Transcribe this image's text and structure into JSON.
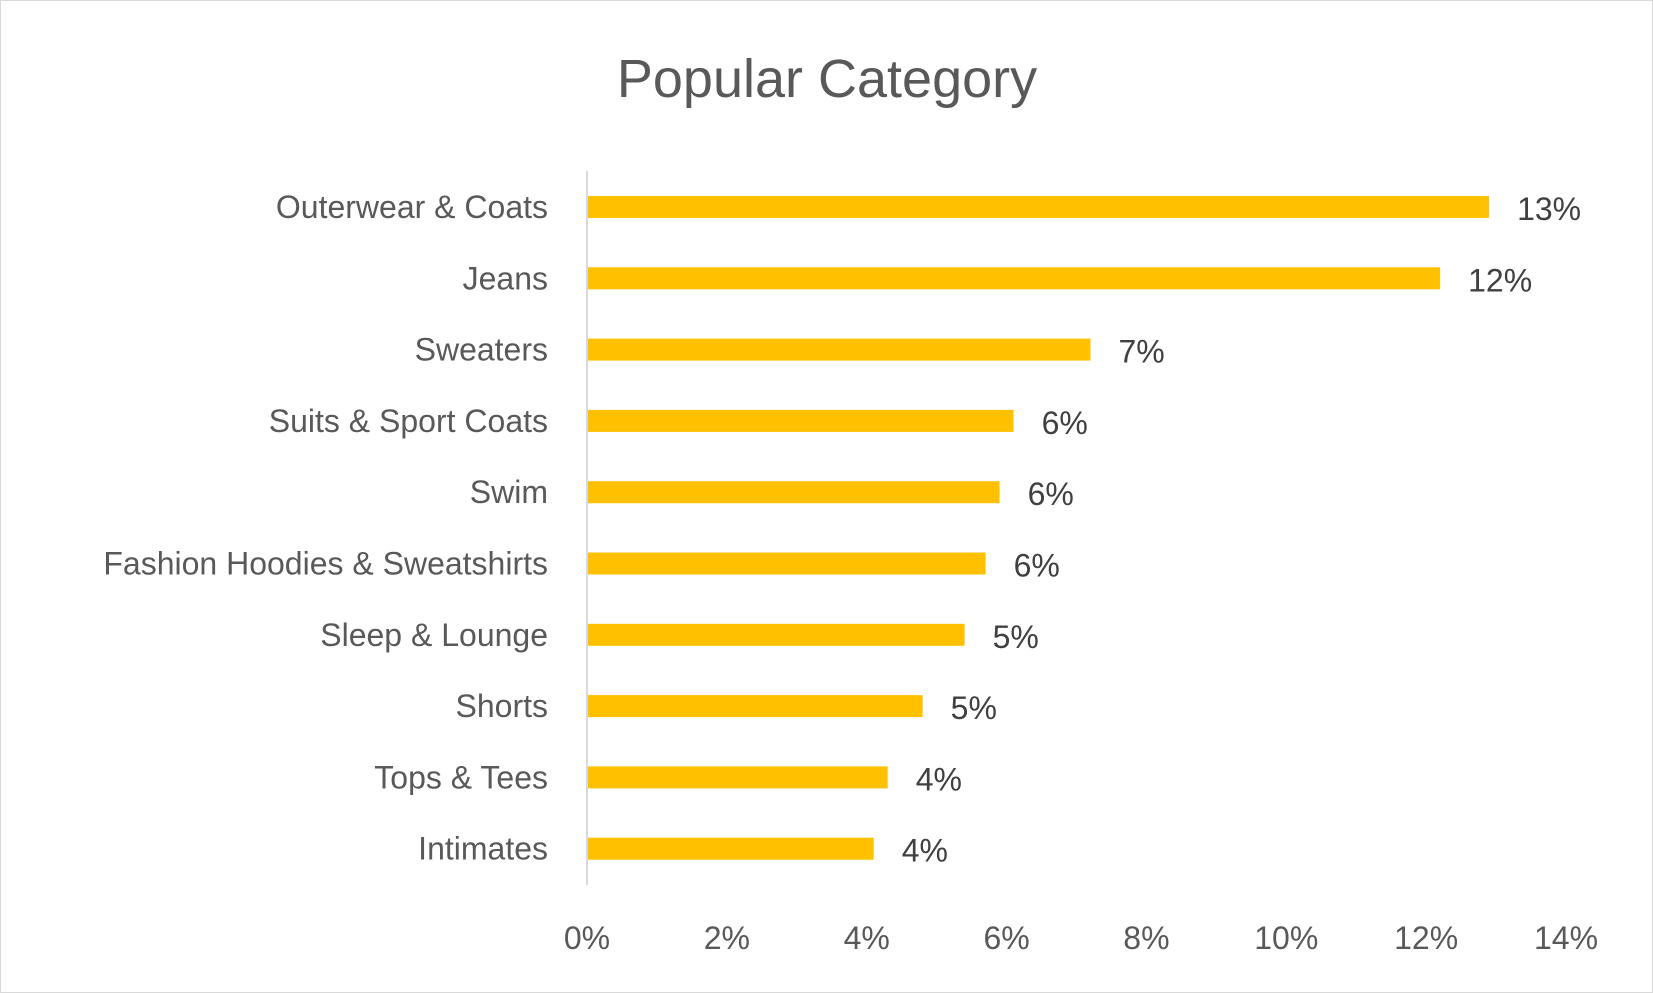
{
  "chart_data": {
    "type": "bar",
    "orientation": "horizontal",
    "title": "Popular Category",
    "xlabel": "",
    "ylabel": "",
    "categories": [
      "Outerwear & Coats",
      "Jeans",
      "Sweaters",
      "Suits & Sport Coats",
      "Swim",
      "Fashion Hoodies & Sweatshirts",
      "Sleep & Lounge",
      "Shorts",
      "Tops & Tees",
      "Intimates"
    ],
    "values": [
      12.9,
      12.2,
      7.2,
      6.1,
      5.9,
      5.7,
      5.4,
      4.8,
      4.3,
      4.1
    ],
    "data_labels": [
      "13%",
      "12%",
      "7%",
      "6%",
      "6%",
      "6%",
      "5%",
      "5%",
      "4%",
      "4%"
    ],
    "xlim": [
      0,
      14
    ],
    "x_ticks": [
      "0%",
      "2%",
      "4%",
      "6%",
      "8%",
      "10%",
      "12%",
      "14%"
    ],
    "grid": false,
    "legend": "none",
    "bar_color": "#FFC000"
  }
}
